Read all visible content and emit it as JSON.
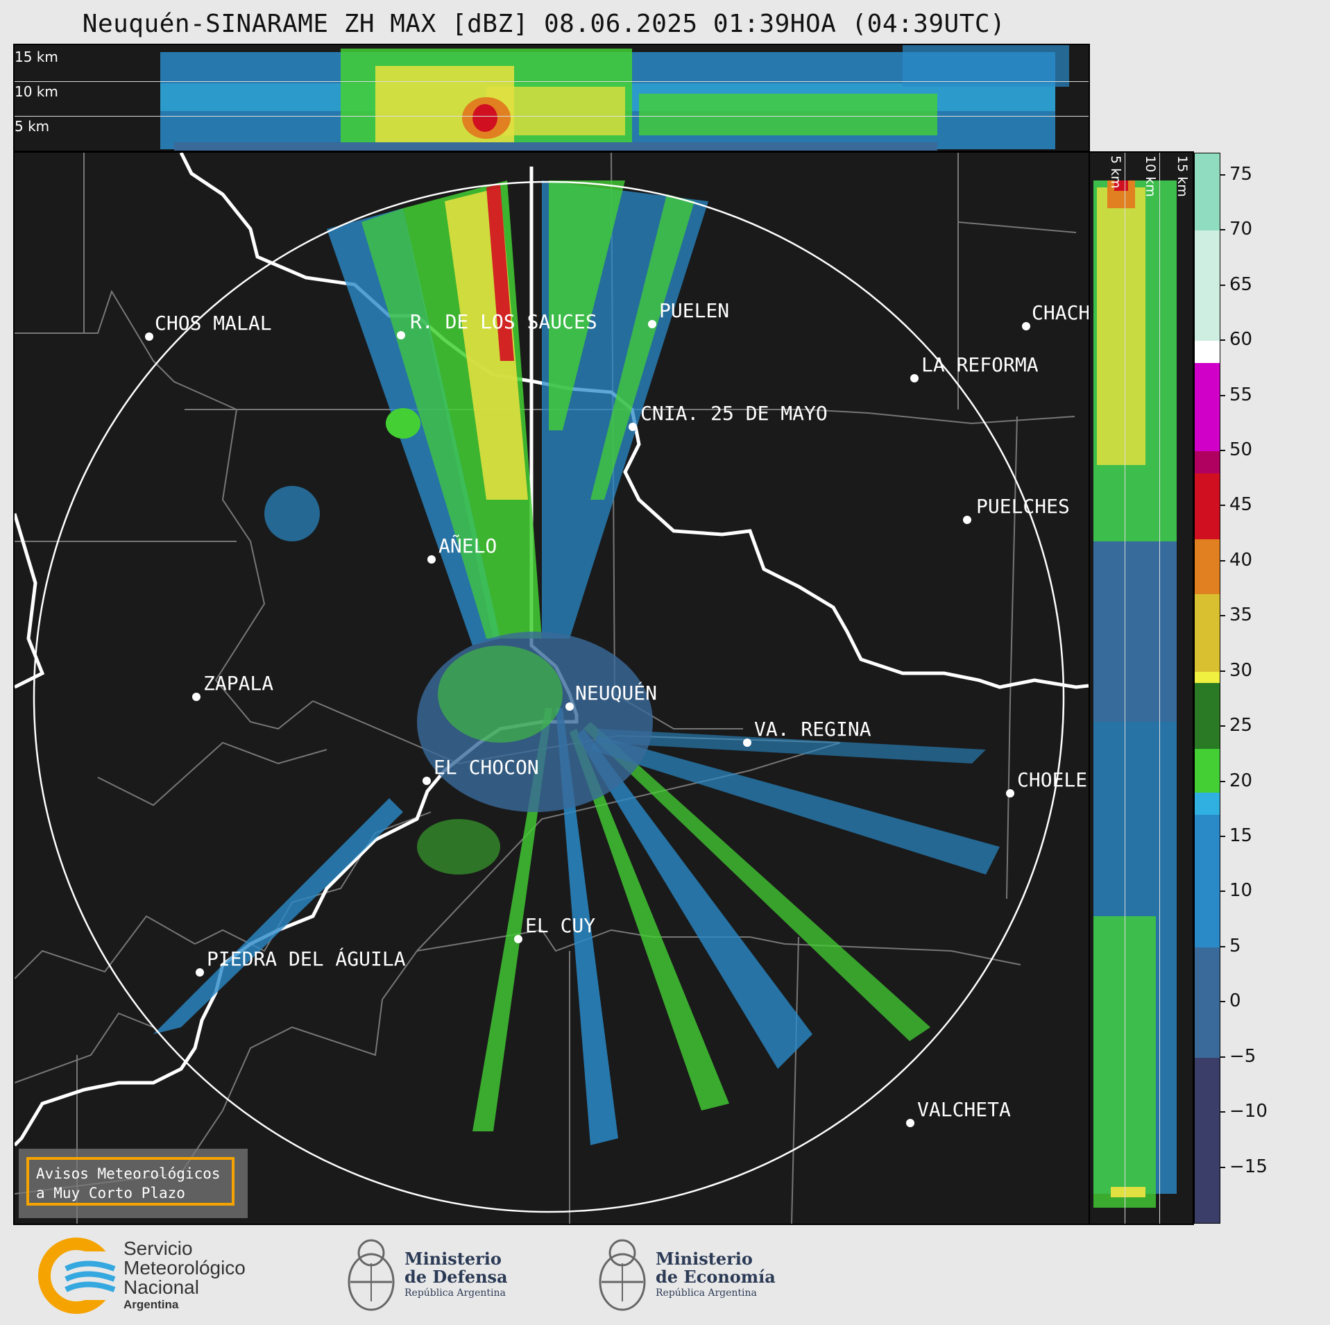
{
  "title": "Neuquén-SINARAME ZH MAX [dBZ] 08.06.2025 01:39HOA (04:39UTC)",
  "top_panel": {
    "labels": [
      "15 km",
      "10 km",
      "5 km"
    ]
  },
  "side_panel": {
    "labels": [
      "5 km",
      "10 km",
      "15 km"
    ]
  },
  "cities": [
    {
      "name": "CHOS MALAL"
    },
    {
      "name": "R. DE LOS SAUCES"
    },
    {
      "name": "PUELEN"
    },
    {
      "name": "CHACH"
    },
    {
      "name": "LA REFORMA"
    },
    {
      "name": "CNIA. 25 DE MAYO"
    },
    {
      "name": "PUELCHES"
    },
    {
      "name": "AÑELO"
    },
    {
      "name": "ZAPALA"
    },
    {
      "name": "NEUQUÉN"
    },
    {
      "name": "VA. REGINA"
    },
    {
      "name": "EL CHOCON"
    },
    {
      "name": "CHOELE"
    },
    {
      "name": "EL CUY"
    },
    {
      "name": "PIEDRA DEL ÁGUILA"
    },
    {
      "name": "VALCHETA"
    }
  ],
  "colorbar": {
    "unit": "dBZ",
    "min": -20,
    "max": 77,
    "ticks": [
      "75",
      "70",
      "65",
      "60",
      "55",
      "50",
      "45",
      "40",
      "35",
      "30",
      "25",
      "20",
      "15",
      "10",
      "5",
      "0",
      "−5",
      "−10",
      "−15"
    ],
    "tick_values": [
      75,
      70,
      65,
      60,
      55,
      50,
      45,
      40,
      35,
      30,
      25,
      20,
      15,
      10,
      5,
      0,
      -5,
      -10,
      -15
    ],
    "bands": [
      {
        "from": 70,
        "to": 77,
        "color": "#8fdcc0"
      },
      {
        "from": 60,
        "to": 70,
        "color": "#cdeee0"
      },
      {
        "from": 58,
        "to": 60,
        "color": "#ffffff"
      },
      {
        "from": 50,
        "to": 58,
        "color": "#d000c8"
      },
      {
        "from": 48,
        "to": 50,
        "color": "#b00060"
      },
      {
        "from": 42,
        "to": 48,
        "color": "#d01020"
      },
      {
        "from": 37,
        "to": 42,
        "color": "#e08020"
      },
      {
        "from": 30,
        "to": 37,
        "color": "#d8c030"
      },
      {
        "from": 29,
        "to": 30,
        "color": "#f0f040"
      },
      {
        "from": 23,
        "to": 29,
        "color": "#2a7a25"
      },
      {
        "from": 19,
        "to": 23,
        "color": "#44d034"
      },
      {
        "from": 17,
        "to": 19,
        "color": "#30b0e0"
      },
      {
        "from": 5,
        "to": 17,
        "color": "#2a8ac8"
      },
      {
        "from": -5,
        "to": 5,
        "color": "#3a6a9a"
      },
      {
        "from": -20,
        "to": -5,
        "color": "#3a3e68"
      }
    ]
  },
  "aviso": {
    "line1": "Avisos Meteorológicos",
    "line2": "a Muy Corto Plazo"
  },
  "logos": {
    "smn": {
      "line1": "Servicio",
      "line2": "Meteorológico",
      "line3": "Nacional",
      "line4": "Argentina"
    },
    "defensa": {
      "line1": "Ministerio",
      "line2": "de Defensa",
      "line3": "República Argentina"
    },
    "economia": {
      "line1": "Ministerio",
      "line2": "de Economía",
      "line3": "República Argentina"
    }
  },
  "colors": {
    "map_bg": "#1a1a1a",
    "echo_blue": "#2a8ac8",
    "echo_green": "#44d034",
    "echo_yellow": "#e0e040",
    "echo_red": "#d01020"
  }
}
